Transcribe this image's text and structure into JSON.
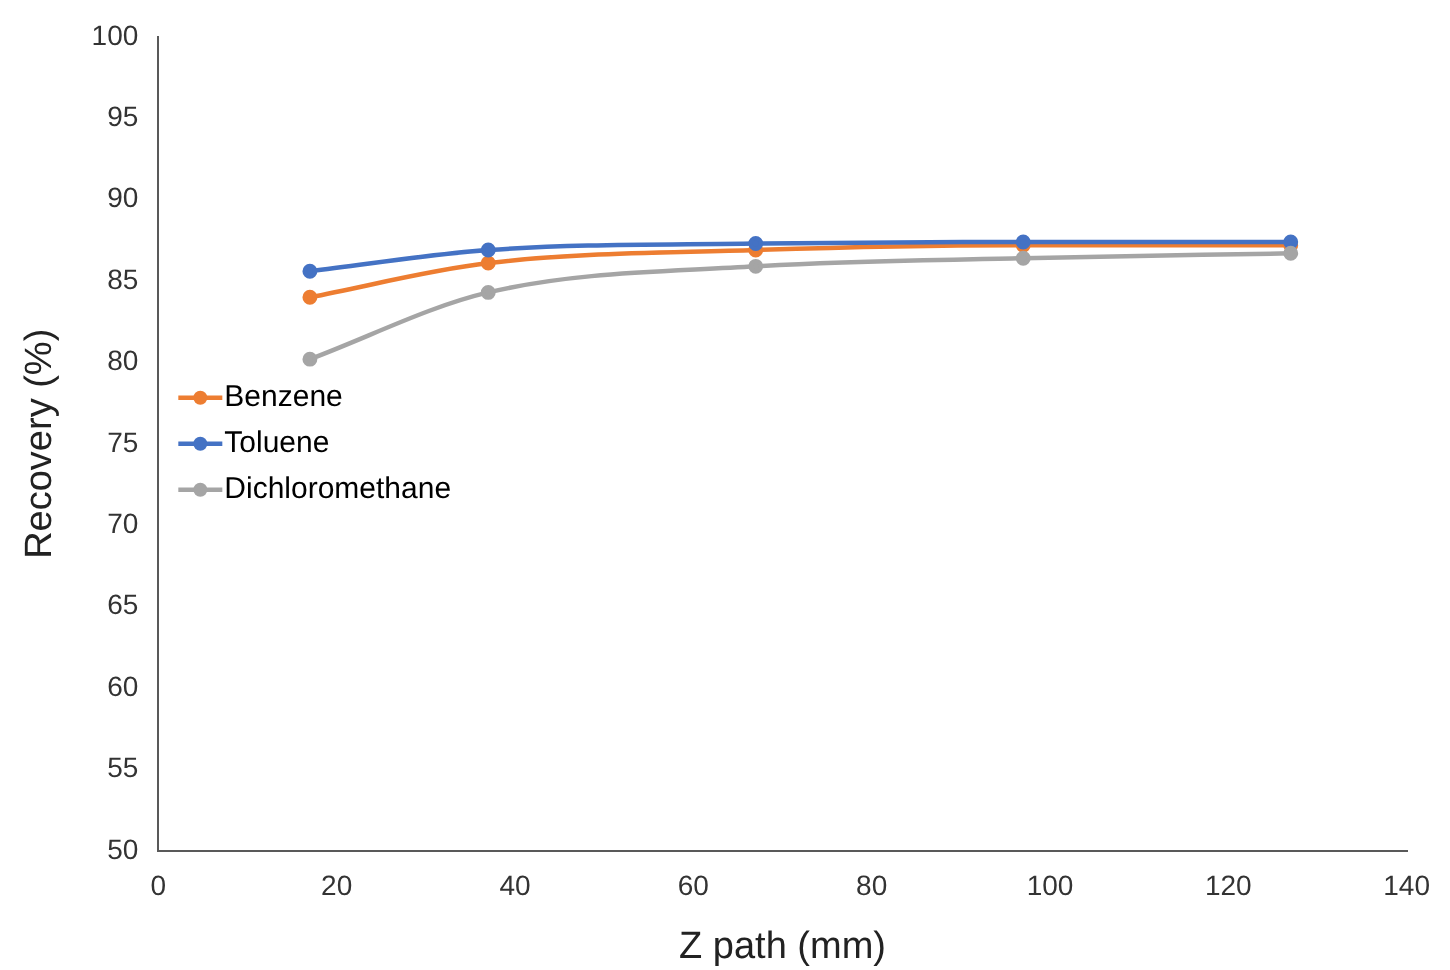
{
  "chart_data": {
    "type": "line",
    "xlabel": "Z path (mm)",
    "ylabel": "Recovery (%)",
    "x": [
      17,
      37,
      67,
      97,
      127
    ],
    "series": [
      {
        "name": "Benzene",
        "color": "#ed7d31",
        "values": [
          84.0,
          86.1,
          86.9,
          87.2,
          87.2
        ]
      },
      {
        "name": "Toluene",
        "color": "#4472c4",
        "values": [
          85.6,
          86.9,
          87.3,
          87.4,
          87.4
        ]
      },
      {
        "name": "Dichloromethane",
        "color": "#a5a5a5",
        "values": [
          80.2,
          84.3,
          85.9,
          86.4,
          86.7
        ]
      }
    ],
    "xlim": [
      0,
      140
    ],
    "xticks": [
      0,
      20,
      40,
      60,
      80,
      100,
      120,
      140
    ],
    "ylim": [
      50,
      100
    ],
    "yticks": [
      50,
      55,
      60,
      65,
      70,
      75,
      80,
      85,
      90,
      95,
      100
    ],
    "grid": false,
    "legend": "left",
    "marker": "circle",
    "line_style": "solid"
  }
}
